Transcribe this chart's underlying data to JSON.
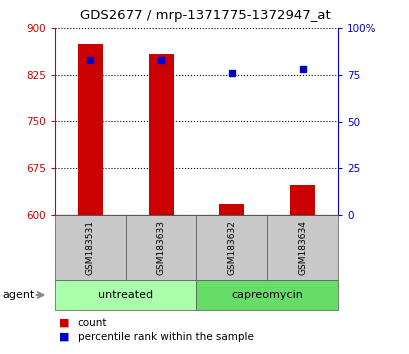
{
  "title": "GDS2677 / mrp-1371775-1372947_at",
  "samples": [
    "GSM183531",
    "GSM183633",
    "GSM183632",
    "GSM183634"
  ],
  "count_values": [
    875,
    858,
    618,
    648
  ],
  "percentile_values": [
    83,
    83,
    76,
    78
  ],
  "ylim_left": [
    600,
    900
  ],
  "ylim_right": [
    0,
    100
  ],
  "yticks_left": [
    600,
    675,
    750,
    825,
    900
  ],
  "ytick_labels_right": [
    "0",
    "25",
    "50",
    "75",
    "100%"
  ],
  "yticks_right": [
    0,
    25,
    50,
    75,
    100
  ],
  "bar_color": "#cc0000",
  "dot_color": "#0000cc",
  "bar_width": 0.35,
  "background_color": "#ffffff",
  "plot_bg_color": "#ffffff",
  "agent_label": "agent",
  "legend_count_label": "count",
  "legend_percentile_label": "percentile rank within the sample",
  "title_fontsize": 9.5,
  "axis_color_left": "#cc0000",
  "axis_color_right": "#0000cc",
  "gray_color": "#c8c8c8",
  "green_color_1": "#aaffaa",
  "green_color_2": "#66dd66",
  "group_labels": [
    "untreated",
    "capreomycin"
  ]
}
